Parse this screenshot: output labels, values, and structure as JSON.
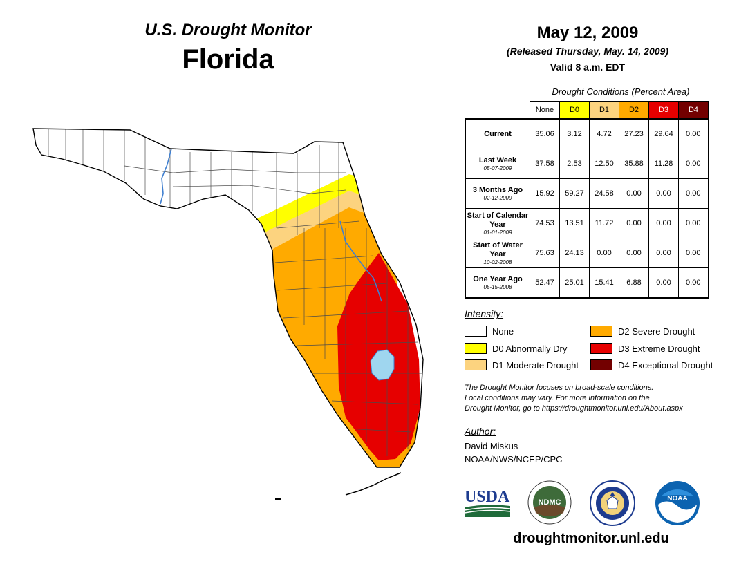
{
  "header": {
    "subtitle": "U.S. Drought Monitor",
    "state": "Florida"
  },
  "map_info": {
    "date": "May 12, 2009",
    "released": "(Released Thursday, May. 14, 2009)",
    "valid": "Valid 8 a.m. EDT"
  },
  "table": {
    "caption": "Drought Conditions (Percent Area)",
    "columns": [
      "None",
      "D0",
      "D1",
      "D2",
      "D3",
      "D4"
    ],
    "column_colors": [
      "#ffffff",
      "#ffff00",
      "#fcd37f",
      "#ffaa00",
      "#e60000",
      "#730000"
    ],
    "rows": [
      {
        "label": "Current",
        "date": "",
        "values": [
          "35.06",
          "3.12",
          "4.72",
          "27.23",
          "29.64",
          "0.00"
        ]
      },
      {
        "label": "Last Week",
        "date": "05-07-2009",
        "values": [
          "37.58",
          "2.53",
          "12.50",
          "35.88",
          "11.28",
          "0.00"
        ]
      },
      {
        "label": "3 Months Ago",
        "date": "02-12-2009",
        "values": [
          "15.92",
          "59.27",
          "24.58",
          "0.00",
          "0.00",
          "0.00"
        ]
      },
      {
        "label": "Start of Calendar Year",
        "date": "01-01-2009",
        "values": [
          "74.53",
          "13.51",
          "11.72",
          "0.00",
          "0.00",
          "0.00"
        ]
      },
      {
        "label": "Start of Water Year",
        "date": "10-02-2008",
        "values": [
          "75.63",
          "24.13",
          "0.00",
          "0.00",
          "0.00",
          "0.00"
        ]
      },
      {
        "label": "One Year Ago",
        "date": "05-15-2008",
        "values": [
          "52.47",
          "25.01",
          "15.41",
          "6.88",
          "0.00",
          "0.00"
        ]
      }
    ]
  },
  "legend": {
    "title": "Intensity:",
    "items": [
      {
        "label": "None",
        "color": "#ffffff"
      },
      {
        "label": "D0 Abnormally Dry",
        "color": "#ffff00"
      },
      {
        "label": "D1 Moderate Drought",
        "color": "#fcd37f"
      },
      {
        "label": "D2 Severe Drought",
        "color": "#ffaa00"
      },
      {
        "label": "D3 Extreme Drought",
        "color": "#e60000"
      },
      {
        "label": "D4 Exceptional Drought",
        "color": "#730000"
      }
    ]
  },
  "note": {
    "line1": "The Drought Monitor focuses on broad-scale conditions.",
    "line2": "Local conditions may vary. For more information on the",
    "line3": "Drought Monitor, go to https://droughtmonitor.unl.edu/About.aspx"
  },
  "author": {
    "title": "Author:",
    "name": "David Miskus",
    "org": "NOAA/NWS/NCEP/CPC"
  },
  "logos": {
    "usda": "USDA",
    "ndmc": "NDMC",
    "noaa": "NOAA"
  },
  "website": "droughtmonitor.unl.edu",
  "colors": {
    "d0": "#ffff00",
    "d1": "#fcd37f",
    "d2": "#ffaa00",
    "d3": "#e60000",
    "lake": "#9fd6ef",
    "river": "#3f7fd0",
    "usda_blue": "#1d3b8f",
    "usda_green": "#1f6b3a"
  }
}
